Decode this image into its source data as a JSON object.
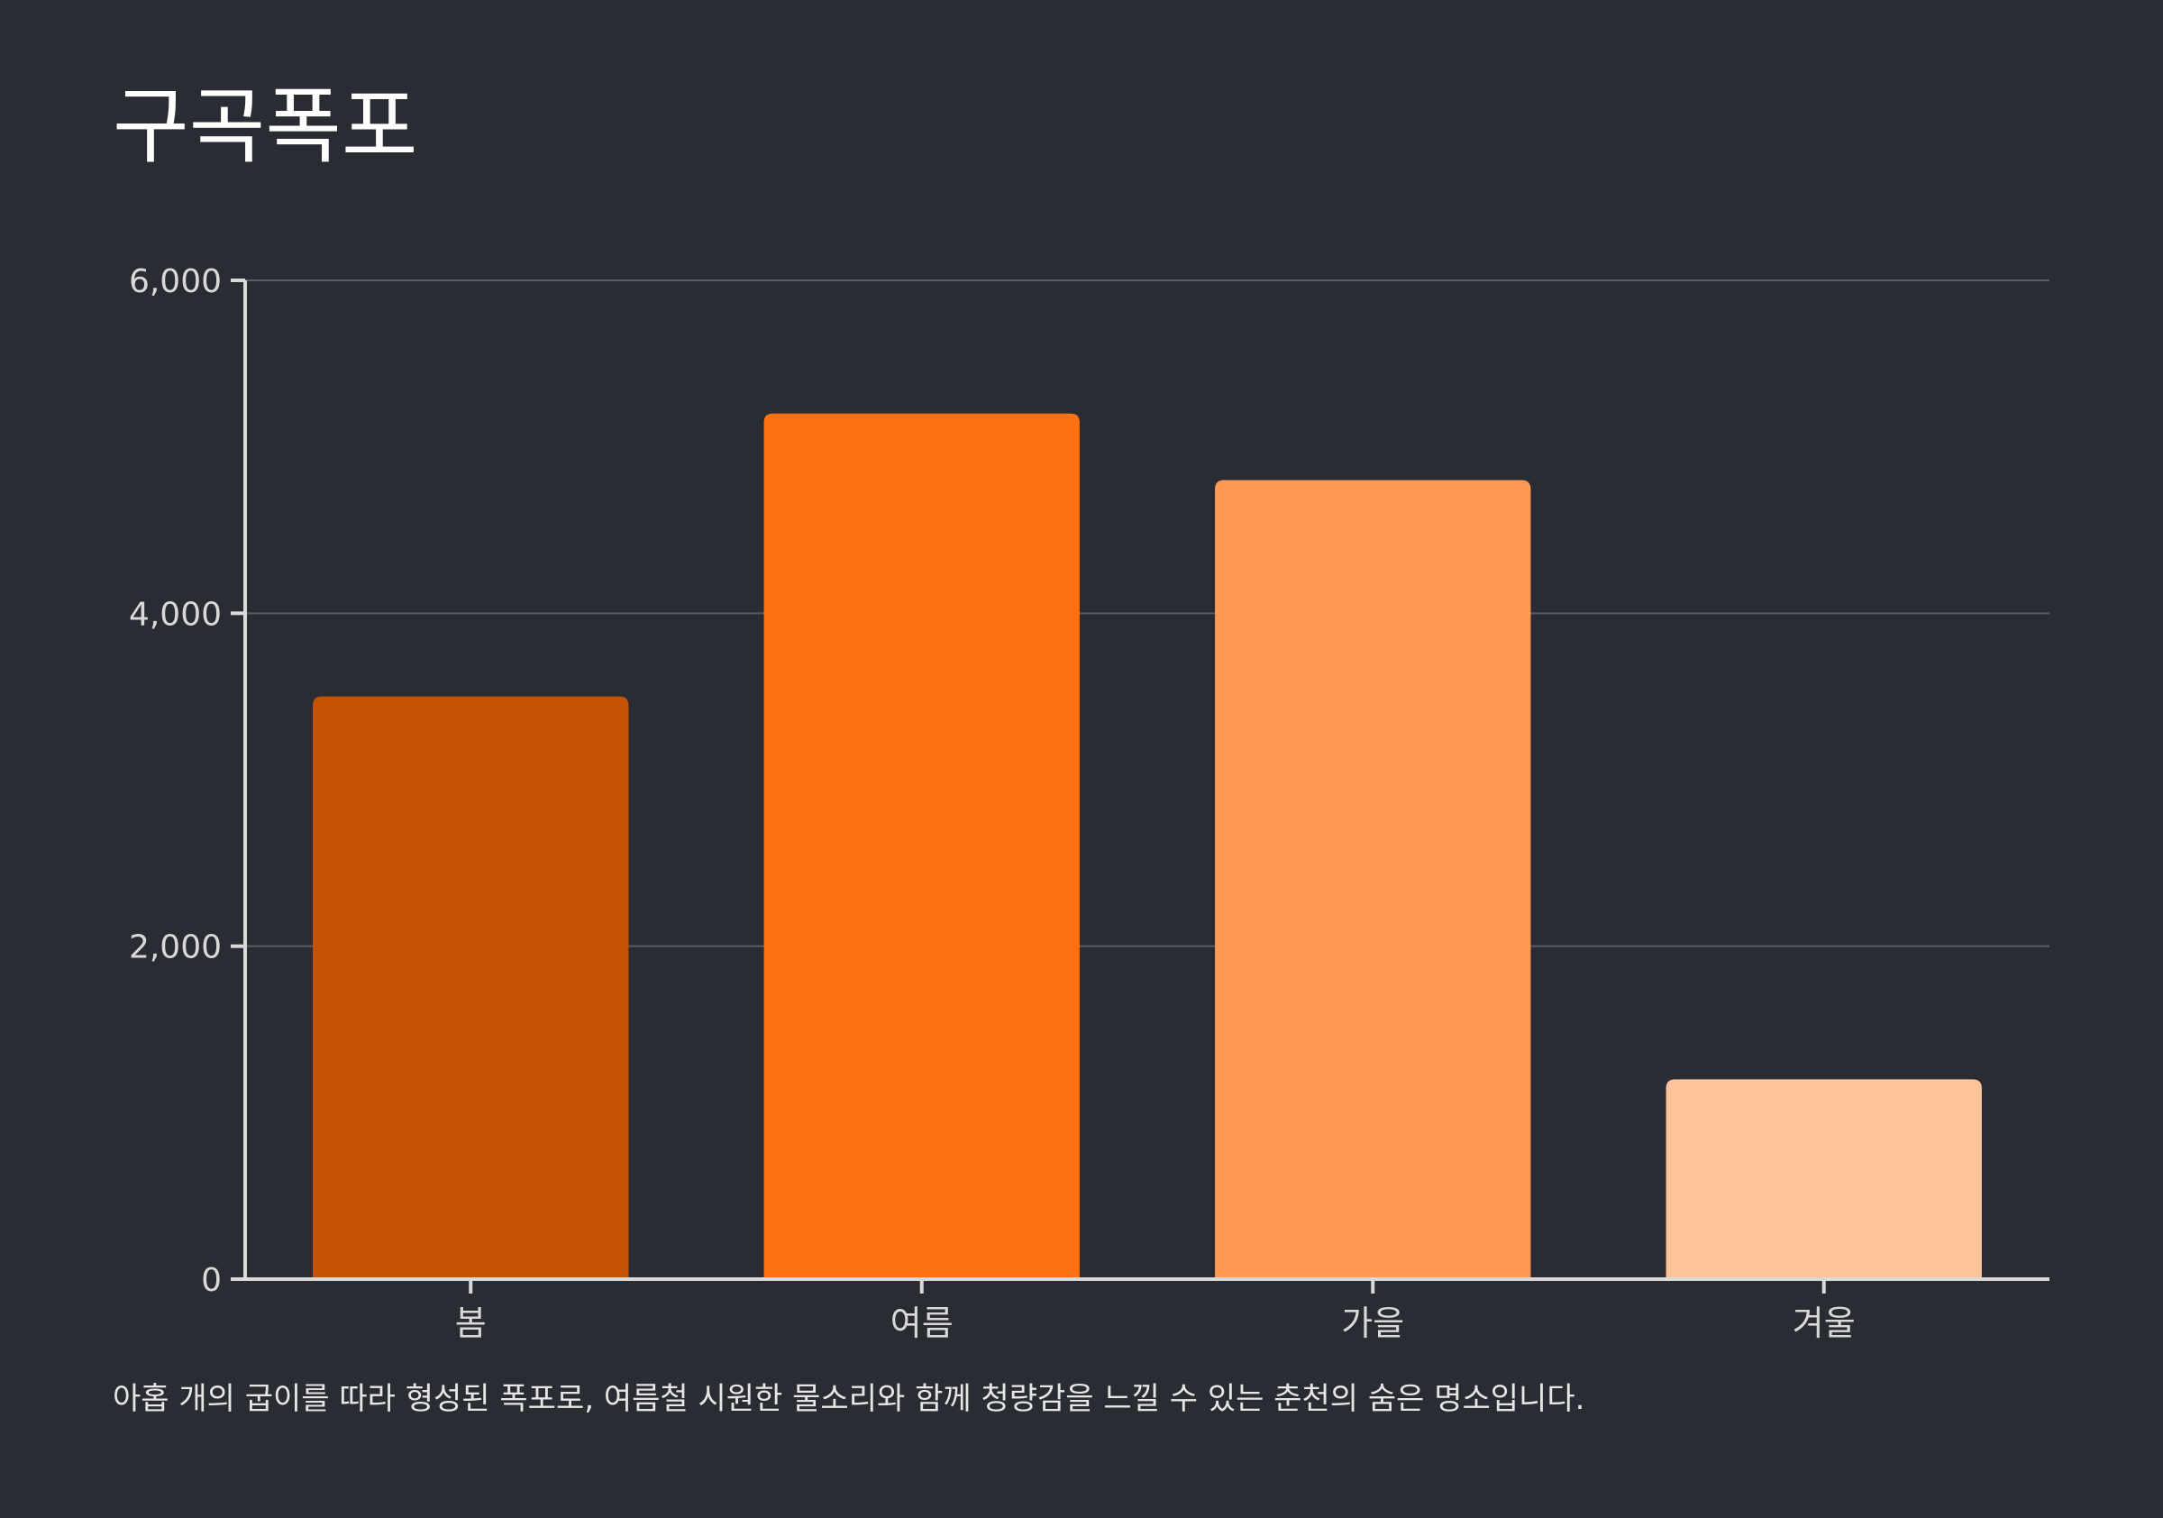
{
  "chart_data": {
    "type": "bar",
    "title": "구곡폭포",
    "categories": [
      "봄",
      "여름",
      "가을",
      "겨울"
    ],
    "values": [
      3500,
      5200,
      4800,
      1200
    ],
    "colors": [
      "#c65100",
      "#ff7110",
      "#ff9a55",
      "#ffc39c"
    ],
    "ylim": [
      0,
      6000
    ],
    "yticks": [
      0,
      2000,
      4000,
      6000
    ],
    "ytick_labels": [
      "0",
      "2,000",
      "4,000",
      "6,000"
    ],
    "xlabel": "",
    "ylabel": "",
    "grid": true,
    "caption": "아홉 개의 굽이를 따라 형성된 폭포로, 여름철 시원한 물소리와 함께 청량감을 느낄 수 있는 춘천의 숨은 명소입니다."
  },
  "theme": {
    "background": "#2a2c33",
    "axis_color": "#d9d9d9",
    "grid_color": "#5a5c62",
    "tick_label_color": "#d9d9d9"
  }
}
